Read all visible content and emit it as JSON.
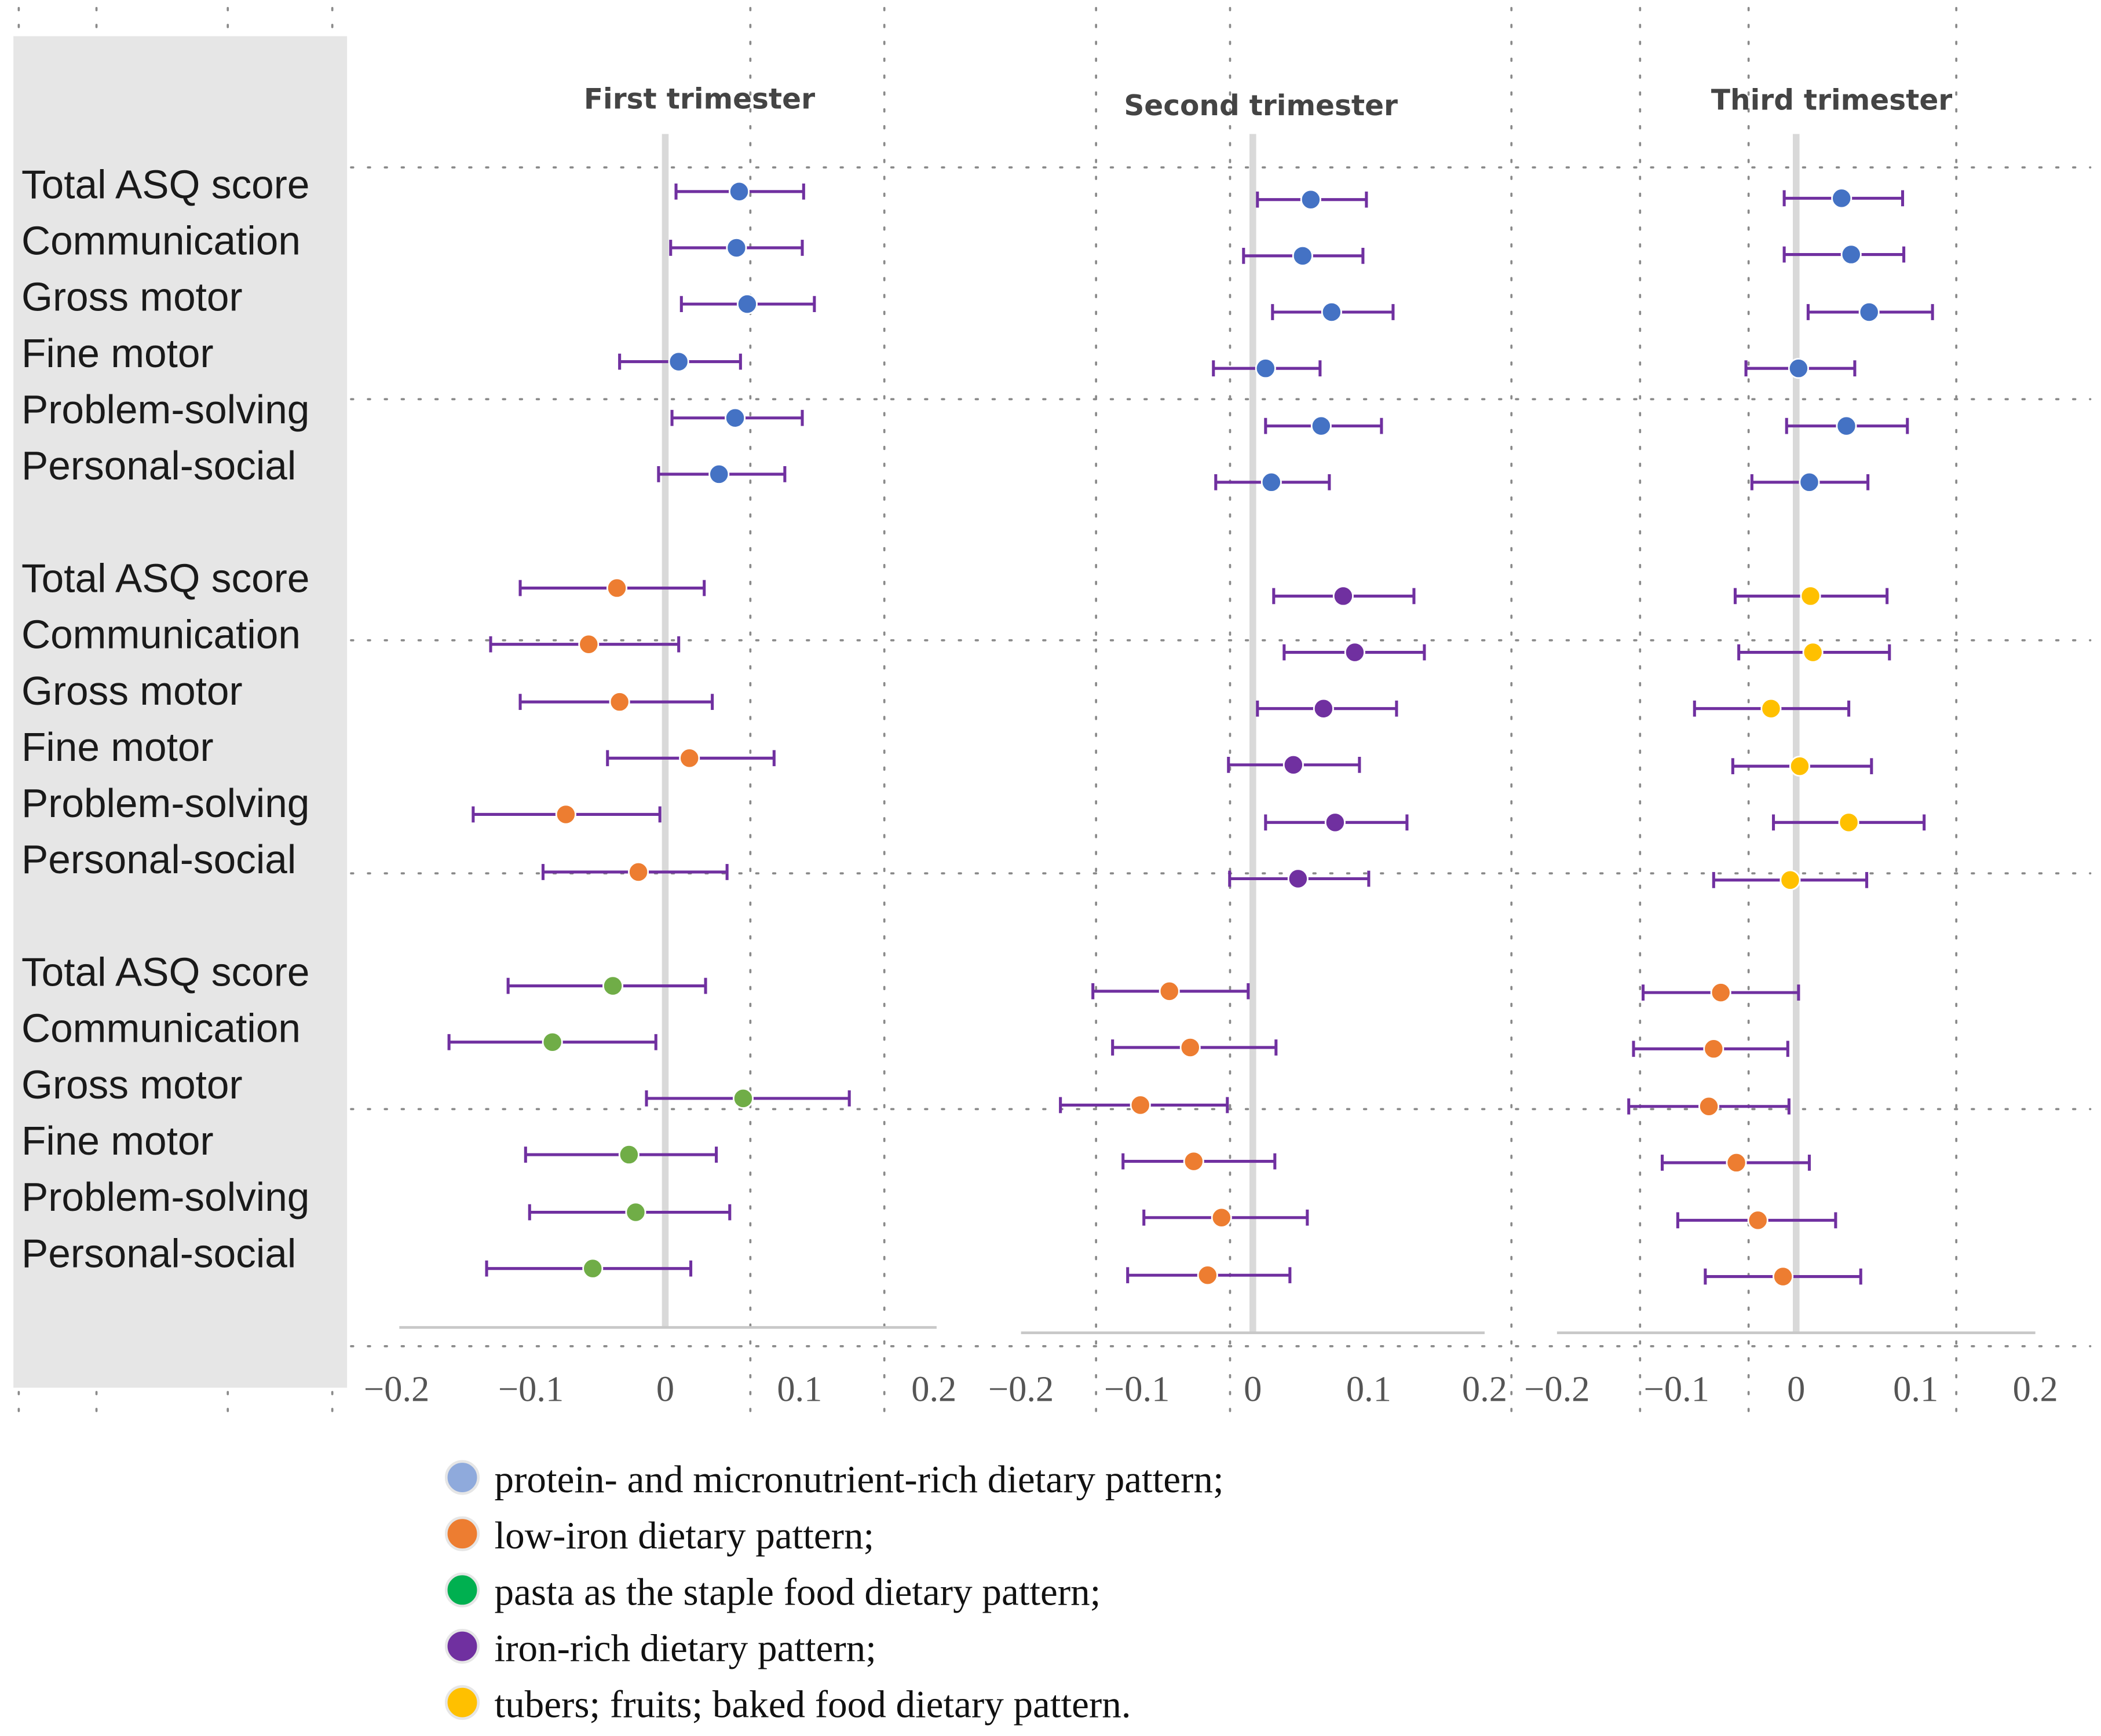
{
  "chart_data": {
    "type": "forest",
    "panels": [
      {
        "title": "First trimester",
        "xlim": [
          -0.2,
          0.2
        ],
        "xticks": [
          "-0.2",
          "-0.1",
          "0",
          "0.1",
          "0.2"
        ],
        "groups": [
          {
            "pattern": "protein- and micronutrient-rich dietary pattern",
            "color": "#4472C4",
            "points": [
              {
                "label": "Total ASQ score",
                "estimate": 0.055,
                "lower": 0.008,
                "upper": 0.103
              },
              {
                "label": "Communication",
                "estimate": 0.053,
                "lower": 0.004,
                "upper": 0.102
              },
              {
                "label": "Gross motor",
                "estimate": 0.061,
                "lower": 0.012,
                "upper": 0.111
              },
              {
                "label": "Fine motor",
                "estimate": 0.01,
                "lower": -0.034,
                "upper": 0.056
              },
              {
                "label": "Problem-solving",
                "estimate": 0.052,
                "lower": 0.005,
                "upper": 0.102
              },
              {
                "label": "Personal-social",
                "estimate": 0.04,
                "lower": -0.005,
                "upper": 0.089
              }
            ]
          },
          {
            "pattern": "low-iron dietary pattern",
            "color": "#ED7D31",
            "points": [
              {
                "label": "Total ASQ score",
                "estimate": -0.036,
                "lower": -0.108,
                "upper": 0.029
              },
              {
                "label": "Communication",
                "estimate": -0.057,
                "lower": -0.13,
                "upper": 0.01
              },
              {
                "label": "Gross motor",
                "estimate": -0.034,
                "lower": -0.108,
                "upper": 0.035
              },
              {
                "label": "Fine motor",
                "estimate": 0.018,
                "lower": -0.043,
                "upper": 0.081
              },
              {
                "label": "Problem-solving",
                "estimate": -0.074,
                "lower": -0.143,
                "upper": -0.004
              },
              {
                "label": "Personal-social",
                "estimate": -0.02,
                "lower": -0.091,
                "upper": 0.046
              }
            ]
          },
          {
            "pattern": "pasta as the staple food dietary pattern",
            "color": "#70AD47",
            "points": [
              {
                "label": "Total ASQ score",
                "estimate": -0.039,
                "lower": -0.117,
                "upper": 0.03
              },
              {
                "label": "Communication",
                "estimate": -0.084,
                "lower": -0.161,
                "upper": -0.007
              },
              {
                "label": "Gross motor",
                "estimate": 0.058,
                "lower": -0.014,
                "upper": 0.137
              },
              {
                "label": "Fine motor",
                "estimate": -0.027,
                "lower": -0.104,
                "upper": 0.038
              },
              {
                "label": "Problem-solving",
                "estimate": -0.022,
                "lower": -0.101,
                "upper": 0.048
              },
              {
                "label": "Personal-social",
                "estimate": -0.054,
                "lower": -0.133,
                "upper": 0.019
              }
            ]
          }
        ]
      },
      {
        "title": "Second trimester",
        "xlim": [
          -0.2,
          0.2
        ],
        "xticks": [
          "-0.2",
          "-0.1",
          "0",
          "0.1",
          "0.2"
        ],
        "groups": [
          {
            "pattern": "protein- and micronutrient-rich dietary pattern",
            "color": "#4472C4",
            "points": [
              {
                "label": "Total ASQ score",
                "estimate": 0.05,
                "lower": 0.004,
                "upper": 0.098
              },
              {
                "label": "Communication",
                "estimate": 0.043,
                "lower": -0.008,
                "upper": 0.095
              },
              {
                "label": "Gross motor",
                "estimate": 0.068,
                "lower": 0.017,
                "upper": 0.121
              },
              {
                "label": "Fine motor",
                "estimate": 0.011,
                "lower": -0.034,
                "upper": 0.058
              },
              {
                "label": "Problem-solving",
                "estimate": 0.059,
                "lower": 0.011,
                "upper": 0.111
              },
              {
                "label": "Personal-social",
                "estimate": 0.016,
                "lower": -0.032,
                "upper": 0.066
              }
            ]
          },
          {
            "pattern": "iron-rich dietary pattern",
            "color": "#7030A0",
            "points": [
              {
                "label": "Total ASQ score",
                "estimate": 0.078,
                "lower": 0.018,
                "upper": 0.139
              },
              {
                "label": "Communication",
                "estimate": 0.088,
                "lower": 0.027,
                "upper": 0.148
              },
              {
                "label": "Gross motor",
                "estimate": 0.061,
                "lower": 0.004,
                "upper": 0.124
              },
              {
                "label": "Fine motor",
                "estimate": 0.035,
                "lower": -0.021,
                "upper": 0.092
              },
              {
                "label": "Problem-solving",
                "estimate": 0.071,
                "lower": 0.011,
                "upper": 0.133
              },
              {
                "label": "Personal-social",
                "estimate": 0.039,
                "lower": -0.02,
                "upper": 0.1
              }
            ]
          },
          {
            "pattern": "low-iron dietary pattern",
            "color": "#ED7D31",
            "points": [
              {
                "label": "Total ASQ score",
                "estimate": -0.072,
                "lower": -0.138,
                "upper": -0.004
              },
              {
                "label": "Communication",
                "estimate": -0.054,
                "lower": -0.121,
                "upper": 0.02
              },
              {
                "label": "Gross motor",
                "estimate": -0.097,
                "lower": -0.166,
                "upper": -0.022
              },
              {
                "label": "Fine motor",
                "estimate": -0.051,
                "lower": -0.112,
                "upper": 0.019
              },
              {
                "label": "Problem-solving",
                "estimate": -0.027,
                "lower": -0.094,
                "upper": 0.047
              },
              {
                "label": "Personal-social",
                "estimate": -0.039,
                "lower": -0.108,
                "upper": 0.032
              }
            ]
          }
        ]
      },
      {
        "title": "Third trimester",
        "xlim": [
          -0.2,
          0.2
        ],
        "xticks": [
          "-0.2",
          "-0.1",
          "0",
          "0.1",
          "0.2"
        ],
        "groups": [
          {
            "pattern": "protein- and micronutrient-rich dietary pattern",
            "color": "#4472C4",
            "points": [
              {
                "label": "Total ASQ score",
                "estimate": 0.038,
                "lower": -0.01,
                "upper": 0.089
              },
              {
                "label": "Communication",
                "estimate": 0.046,
                "lower": -0.01,
                "upper": 0.09
              },
              {
                "label": "Gross motor",
                "estimate": 0.061,
                "lower": 0.01,
                "upper": 0.114
              },
              {
                "label": "Fine motor",
                "estimate": 0.002,
                "lower": -0.042,
                "upper": 0.049
              },
              {
                "label": "Problem-solving",
                "estimate": 0.042,
                "lower": -0.008,
                "upper": 0.093
              },
              {
                "label": "Personal-social",
                "estimate": 0.011,
                "lower": -0.037,
                "upper": 0.06
              }
            ]
          },
          {
            "pattern": "tubers; fruits; baked food dietary pattern",
            "color": "#FFC000",
            "points": [
              {
                "label": "Total ASQ score",
                "estimate": 0.012,
                "lower": -0.051,
                "upper": 0.076
              },
              {
                "label": "Communication",
                "estimate": 0.014,
                "lower": -0.048,
                "upper": 0.078
              },
              {
                "label": "Gross motor",
                "estimate": -0.021,
                "lower": -0.085,
                "upper": 0.044
              },
              {
                "label": "Fine motor",
                "estimate": 0.003,
                "lower": -0.053,
                "upper": 0.063
              },
              {
                "label": "Problem-solving",
                "estimate": 0.044,
                "lower": -0.019,
                "upper": 0.107
              },
              {
                "label": "Personal-social",
                "estimate": -0.005,
                "lower": -0.069,
                "upper": 0.059
              }
            ]
          },
          {
            "pattern": "low-iron dietary pattern",
            "color": "#ED7D31",
            "points": [
              {
                "label": "Total ASQ score",
                "estimate": -0.063,
                "lower": -0.128,
                "upper": 0.002
              },
              {
                "label": "Communication",
                "estimate": -0.069,
                "lower": -0.136,
                "upper": -0.007
              },
              {
                "label": "Gross motor",
                "estimate": -0.073,
                "lower": -0.14,
                "upper": -0.006
              },
              {
                "label": "Fine motor",
                "estimate": -0.05,
                "lower": -0.112,
                "upper": 0.011
              },
              {
                "label": "Problem-solving",
                "estimate": -0.032,
                "lower": -0.099,
                "upper": 0.033
              },
              {
                "label": "Personal-social",
                "estimate": -0.011,
                "lower": -0.076,
                "upper": 0.054
              }
            ]
          }
        ]
      }
    ],
    "row_labels": [
      "Total ASQ score",
      "Communication",
      "Gross motor",
      "Fine motor",
      "Problem-solving",
      "Personal-social",
      "Total ASQ score",
      "Communication",
      "Gross motor",
      "Fine motor",
      "Problem-solving",
      "Personal-social",
      "Total ASQ score",
      "Communication",
      "Gross motor",
      "Fine motor",
      "Problem-solving",
      "Personal-social"
    ],
    "error_bar_color": "#7030A0",
    "legend": [
      {
        "label": "protein- and micronutrient-rich dietary pattern;",
        "color": "#8FAADC"
      },
      {
        "label": "low-iron dietary pattern;",
        "color": "#ED7D31"
      },
      {
        "label": "pasta as the staple food dietary pattern;",
        "color": "#00B050"
      },
      {
        "label": "iron-rich dietary pattern;",
        "color": "#7030A0"
      },
      {
        "label": "tubers; fruits; baked food dietary pattern.",
        "color": "#FFC000"
      }
    ]
  }
}
